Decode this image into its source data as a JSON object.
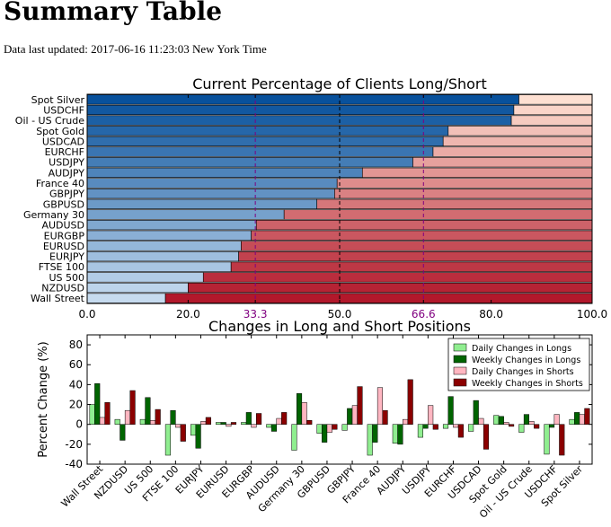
{
  "header": {
    "title": "Summary Table",
    "updated_label": "Data last updated:",
    "updated_value": "2017-06-16 11:23:03 New York Time"
  },
  "chart_data": [
    {
      "type": "bar",
      "orientation": "horizontal",
      "stacked": true,
      "title": "Current Percentage of Clients Long/Short",
      "xlim": [
        0,
        100
      ],
      "x_ticks": [
        "0.0",
        "20.0",
        "33.3",
        "50.0",
        "66.6",
        "80.0",
        "100.0"
      ],
      "reference_lines": [
        33.3,
        50.0,
        66.6
      ],
      "categories": [
        "Spot Silver",
        "USDCHF",
        "Oil - US Crude",
        "Spot Gold",
        "USDCAD",
        "EURCHF",
        "USDJPY",
        "AUDJPY",
        "France 40",
        "GBPJPY",
        "GBPUSD",
        "Germany 30",
        "AUDUSD",
        "EURGBP",
        "EURUSD",
        "EURJPY",
        "FTSE 100",
        "US 500",
        "NZDUSD",
        "Wall Street"
      ],
      "long_percent": [
        85.5,
        84.5,
        84.0,
        71.5,
        70.5,
        68.5,
        64.5,
        54.5,
        49.5,
        49.0,
        45.5,
        39.0,
        33.5,
        32.5,
        30.5,
        30.0,
        28.5,
        23.0,
        20.0,
        15.5
      ],
      "colors": {
        "long_dark": "#08519c",
        "long_light": "#c6dbef",
        "short_light": "#fee0d2",
        "short_dark": "#b2182b",
        "reference": "#800080"
      }
    },
    {
      "type": "bar",
      "grouped": true,
      "title": "Changes in Long and Short Positions",
      "ylabel": "Percent Change (%)",
      "ylim": [
        -40,
        90
      ],
      "y_ticks": [
        80,
        60,
        40,
        20,
        0,
        -20,
        -40
      ],
      "legend_position": "top-right",
      "categories": [
        "Wall Street",
        "NZDUSD",
        "US 500",
        "FTSE 100",
        "EURJPY",
        "EURUSD",
        "EURGBP",
        "AUDUSD",
        "Germany 30",
        "GBPUSD",
        "GBPJPY",
        "France 40",
        "AUDJPY",
        "USDJPY",
        "EURCHF",
        "USDCAD",
        "Spot Gold",
        "Oil - US Crude",
        "USDCHF",
        "Spot Silver"
      ],
      "series": [
        {
          "name": "Daily Changes in Longs",
          "color": "#90ee90",
          "values": [
            20,
            5,
            5,
            -31,
            -11,
            2,
            2,
            -3,
            -26,
            -9,
            -6,
            -31,
            -19,
            -13,
            -4,
            -7,
            9,
            -8,
            -30,
            5
          ]
        },
        {
          "name": "Weekly Changes in Longs",
          "color": "#006400",
          "values": [
            41,
            -16,
            27,
            14,
            -24,
            2,
            12,
            -7,
            31,
            -18,
            16,
            -18,
            -20,
            -4,
            28,
            24,
            8,
            10,
            -3,
            12
          ]
        },
        {
          "name": "Daily Changes in Shorts",
          "color": "#ffb6c1",
          "values": [
            7,
            14,
            4,
            -3,
            3,
            -2,
            -3,
            6,
            22,
            -8,
            19,
            37,
            5,
            19,
            -3,
            6,
            2,
            3,
            10,
            10
          ]
        },
        {
          "name": "Weekly Changes in Shorts",
          "color": "#8b0000",
          "values": [
            22,
            34,
            15,
            -17,
            7,
            2,
            11,
            12,
            4,
            -5,
            38,
            14,
            45,
            -5,
            -13,
            -25,
            -2,
            -4,
            -31,
            16
          ]
        }
      ]
    }
  ]
}
